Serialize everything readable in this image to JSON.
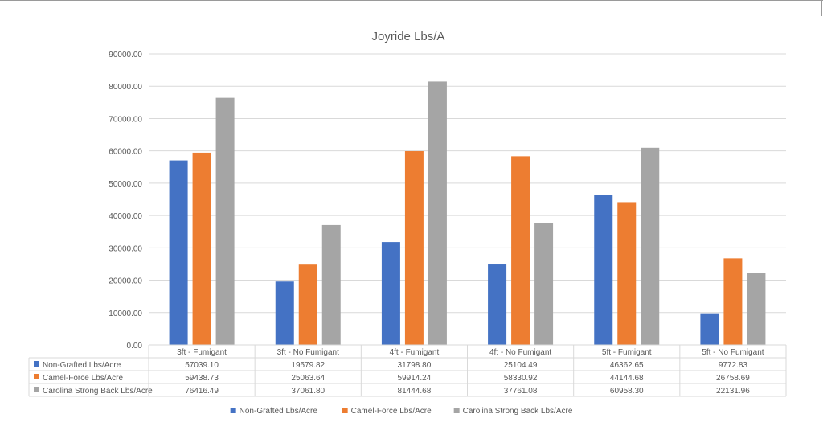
{
  "chart_data": {
    "type": "bar",
    "title": "Joyride Lbs/A",
    "categories": [
      "3ft - Fumigant",
      "3ft - No Fumigant",
      "4ft - Fumigant",
      "4ft - No Fumigant",
      "5ft - Fumigant",
      "5ft - No Fumigant"
    ],
    "series": [
      {
        "name": "Non-Grafted Lbs/Acre",
        "color": "#4472c4",
        "values": [
          57039.1,
          19579.82,
          31798.8,
          25104.49,
          46362.65,
          9772.83
        ],
        "labels": [
          "57039.10",
          "19579.82",
          "31798.80",
          "25104.49",
          "46362.65",
          "9772.83"
        ]
      },
      {
        "name": "Camel-Force Lbs/Acre",
        "color": "#ed7d31",
        "values": [
          59438.73,
          25063.64,
          59914.24,
          58330.92,
          44144.68,
          26758.69
        ],
        "labels": [
          "59438.73",
          "25063.64",
          "59914.24",
          "58330.92",
          "44144.68",
          "26758.69"
        ]
      },
      {
        "name": "Carolina Strong Back Lbs/Acre",
        "color": "#a5a5a5",
        "values": [
          76416.49,
          37061.8,
          81444.68,
          37761.08,
          60958.3,
          22131.96
        ],
        "labels": [
          "76416.49",
          "37061.80",
          "81444.68",
          "37761.08",
          "60958.30",
          "22131.96"
        ]
      }
    ],
    "ylim": [
      0,
      90000
    ],
    "yticks": [
      "0.00",
      "10000.00",
      "20000.00",
      "30000.00",
      "40000.00",
      "50000.00",
      "60000.00",
      "70000.00",
      "80000.00",
      "90000.00"
    ],
    "grid": true,
    "data_table": true,
    "legend_position": "bottom"
  }
}
